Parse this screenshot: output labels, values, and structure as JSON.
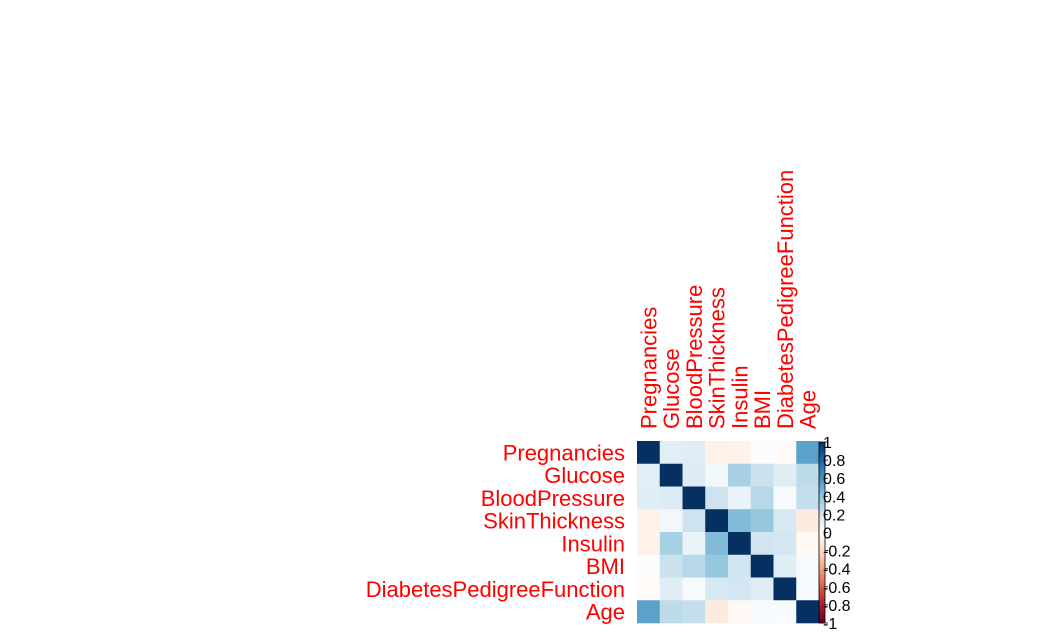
{
  "chart_data": {
    "type": "heatmap",
    "title": "",
    "variables": [
      "Pregnancies",
      "Glucose",
      "BloodPressure",
      "SkinThickness",
      "Insulin",
      "BMI",
      "DiabetesPedigreeFunction",
      "Age"
    ],
    "matrix": [
      [
        1.0,
        0.13,
        0.14,
        -0.08,
        -0.07,
        0.02,
        -0.03,
        0.54
      ],
      [
        0.13,
        1.0,
        0.15,
        0.06,
        0.33,
        0.22,
        0.14,
        0.26
      ],
      [
        0.14,
        0.15,
        1.0,
        0.21,
        0.09,
        0.28,
        0.04,
        0.24
      ],
      [
        -0.08,
        0.06,
        0.21,
        1.0,
        0.44,
        0.39,
        0.18,
        -0.11
      ],
      [
        -0.07,
        0.33,
        0.09,
        0.44,
        1.0,
        0.2,
        0.19,
        -0.04
      ],
      [
        0.02,
        0.22,
        0.28,
        0.39,
        0.2,
        1.0,
        0.14,
        0.04
      ],
      [
        -0.03,
        0.14,
        0.04,
        0.18,
        0.19,
        0.14,
        1.0,
        0.03
      ],
      [
        0.54,
        0.26,
        0.24,
        -0.11,
        -0.04,
        0.04,
        0.03,
        1.0
      ]
    ],
    "color_range": [
      -1,
      1
    ],
    "colorbar_ticks": [
      "1",
      "0.8",
      "0.6",
      "0.4",
      "0.2",
      "0",
      "-0.2",
      "-0.4",
      "-0.6",
      "-0.8",
      "-1"
    ],
    "colors": {
      "label": "#ff0000",
      "positive": "#053061",
      "negative": "#67001f",
      "neutral": "#ffffff"
    },
    "legend": "right"
  }
}
